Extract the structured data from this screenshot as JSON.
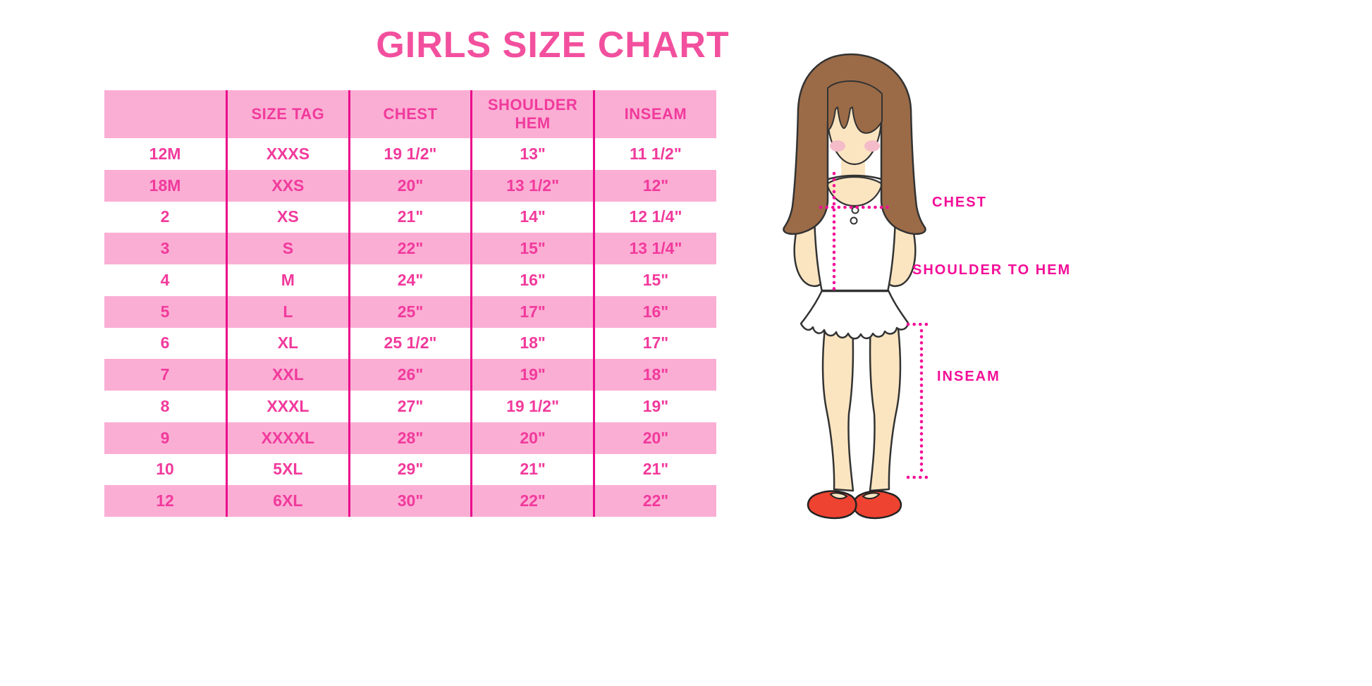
{
  "title": "GIRLS SIZE CHART",
  "chart_data": {
    "type": "table",
    "title": "GIRLS SIZE CHART",
    "columns": [
      "",
      "SIZE TAG",
      "CHEST",
      "SHOULDER HEM",
      "INSEAM"
    ],
    "rows": [
      [
        "12M",
        "XXXS",
        "19 1/2\"",
        "13\"",
        "11 1/2\""
      ],
      [
        "18M",
        "XXS",
        "20\"",
        "13 1/2\"",
        "12\""
      ],
      [
        "2",
        "XS",
        "21\"",
        "14\"",
        "12 1/4\""
      ],
      [
        "3",
        "S",
        "22\"",
        "15\"",
        "13 1/4\""
      ],
      [
        "4",
        "M",
        "24\"",
        "16\"",
        "15\""
      ],
      [
        "5",
        "L",
        "25\"",
        "17\"",
        "16\""
      ],
      [
        "6",
        "XL",
        "25 1/2\"",
        "18\"",
        "17\""
      ],
      [
        "7",
        "XXL",
        "26\"",
        "19\"",
        "18\""
      ],
      [
        "8",
        "XXXL",
        "27\"",
        "19 1/2\"",
        "19\""
      ],
      [
        "9",
        "XXXXL",
        "28\"",
        "20\"",
        "20\""
      ],
      [
        "10",
        "5XL",
        "29\"",
        "21\"",
        "21\""
      ],
      [
        "12",
        "6XL",
        "30\"",
        "22\"",
        "22\""
      ]
    ],
    "row_striping": "white / pink alternating, header pink",
    "legend_position": "none",
    "grid": "vertical magenta column separators only"
  },
  "figure": {
    "chest_label": "CHEST",
    "shoulder_to_hem_label": "SHOULDER TO HEM",
    "inseam_label": "INSEAM"
  },
  "colors": {
    "title_pink": "#F2509E",
    "row_pink": "#FBAED4",
    "table_text_pink": "#F13A9C",
    "grid_line_magenta": "#EA0B8C",
    "label_magenta": "#F30D98",
    "hair_brown": "#9B6B47",
    "skin": "#FBE5C1",
    "blush": "#F4BCC8",
    "shoe_red": "#EE4331",
    "background": "#FFFFFF"
  }
}
